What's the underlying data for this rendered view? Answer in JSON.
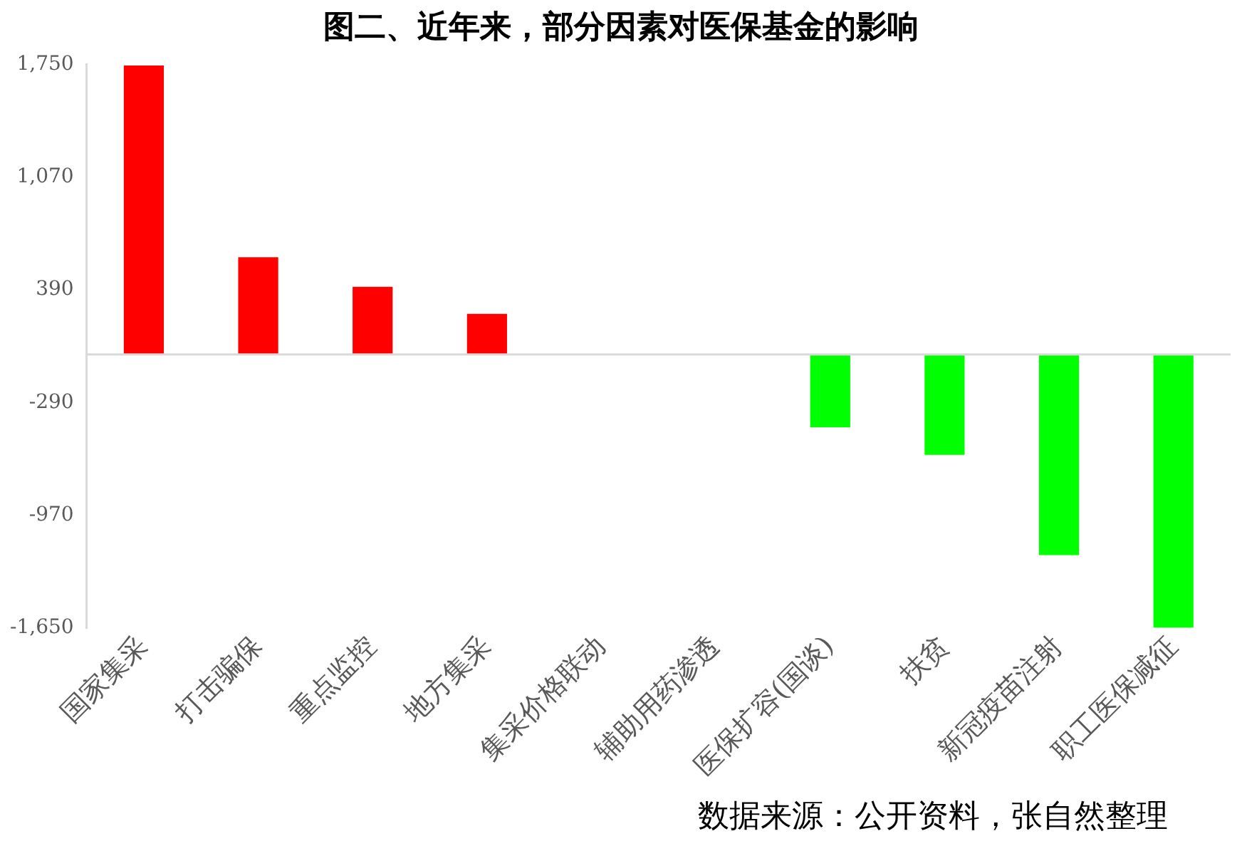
{
  "chart_data": {
    "type": "bar",
    "title": "图二、近年来，部分因素对医保基金的影响",
    "categories": [
      "国家集采",
      "打击骗保",
      "重点监控",
      "地方集采",
      "集采价格联动",
      "辅助用药渗透",
      "医保扩容(国谈)",
      "扶贫",
      "新冠疫苗注射",
      "职工医保减征"
    ],
    "values": [
      1745,
      587,
      409,
      245,
      0,
      0,
      -439,
      -606,
      -1211,
      -1650
    ],
    "colors": [
      "#ff0000",
      "#ff0000",
      "#ff0000",
      "#ff0000",
      "#ff0000",
      "#ff0000",
      "#00ff00",
      "#00ff00",
      "#00ff00",
      "#00ff00"
    ],
    "ylim": [
      -1650,
      1750
    ],
    "yticks": [
      {
        "value": 1750,
        "label": "1,750"
      },
      {
        "value": 1070,
        "label": "1,070"
      },
      390,
      -290,
      -970,
      {
        "value": -1650,
        "label": "-1,650"
      }
    ],
    "grid": false,
    "legend": false,
    "annotations": [
      "数据来源：公开资料，张自然整理"
    ]
  }
}
